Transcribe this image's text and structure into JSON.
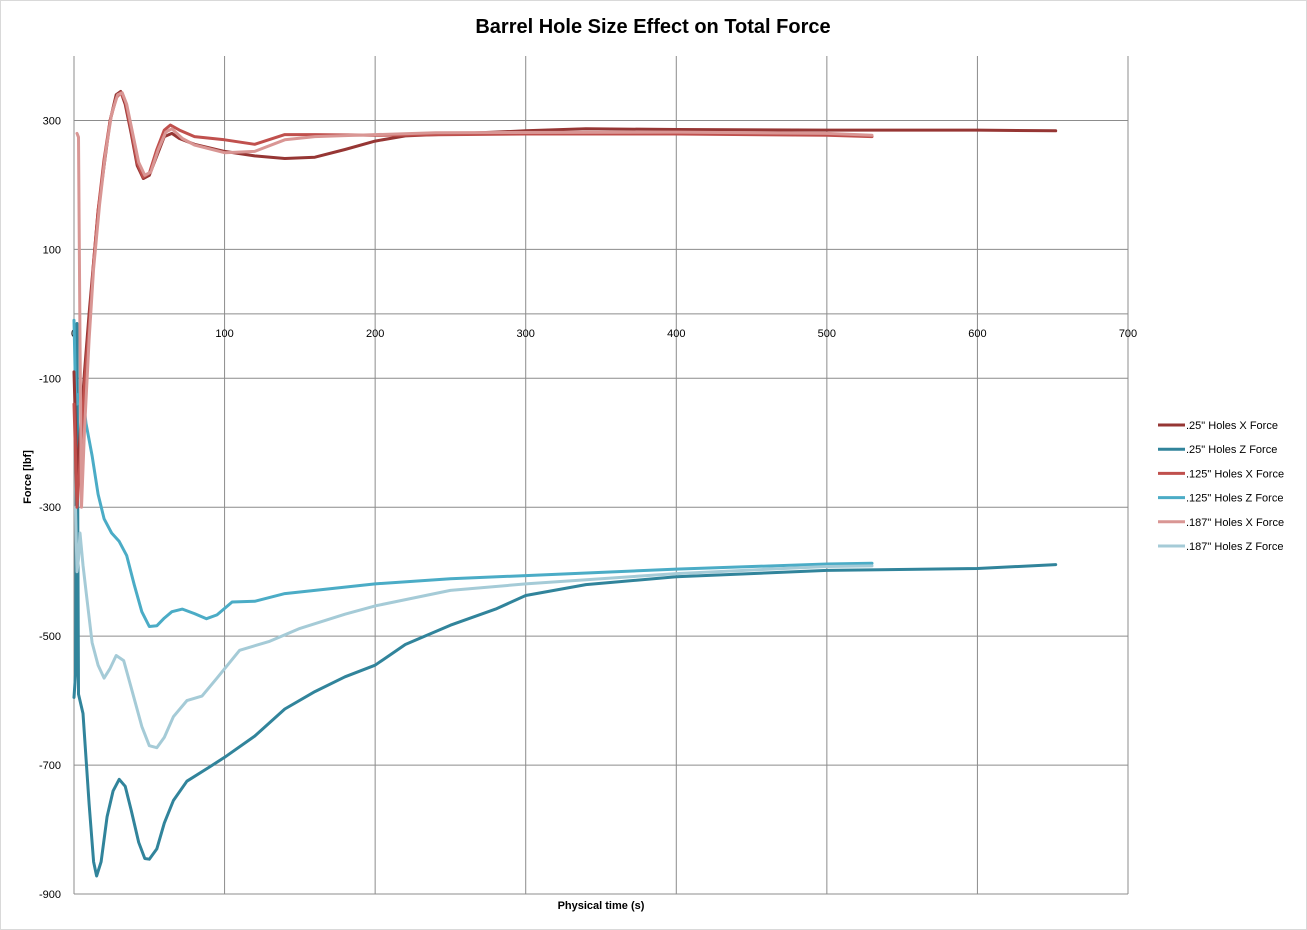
{
  "chart_data": {
    "type": "line",
    "title": "Barrel Hole Size Effect on Total Force",
    "xlabel": "Physical  time (s)",
    "ylabel": "Force  [lbf]",
    "xlim": [
      0,
      700
    ],
    "ylim": [
      -900,
      400
    ],
    "x_ticks": [
      0,
      100,
      200,
      300,
      400,
      500,
      600,
      700
    ],
    "y_ticks": [
      300,
      100,
      -100,
      -300,
      -500,
      -700,
      -900
    ],
    "grid": true,
    "legend_position": "right",
    "series": [
      {
        "name": ".25\" Holes X Force",
        "color": "#963634",
        "points": [
          [
            0,
            -90
          ],
          [
            2,
            -260
          ],
          [
            4,
            -190
          ],
          [
            7,
            -90
          ],
          [
            10,
            0
          ],
          [
            13,
            80
          ],
          [
            16,
            160
          ],
          [
            20,
            230
          ],
          [
            24,
            300
          ],
          [
            28,
            340
          ],
          [
            31,
            345
          ],
          [
            34,
            325
          ],
          [
            38,
            280
          ],
          [
            42,
            230
          ],
          [
            46,
            210
          ],
          [
            50,
            215
          ],
          [
            55,
            245
          ],
          [
            60,
            275
          ],
          [
            65,
            280
          ],
          [
            70,
            272
          ],
          [
            80,
            263
          ],
          [
            100,
            252
          ],
          [
            120,
            245
          ],
          [
            140,
            241
          ],
          [
            160,
            243
          ],
          [
            180,
            255
          ],
          [
            200,
            268
          ],
          [
            220,
            276
          ],
          [
            260,
            280
          ],
          [
            300,
            284
          ],
          [
            340,
            287
          ],
          [
            400,
            286
          ],
          [
            500,
            285
          ],
          [
            600,
            285
          ],
          [
            652,
            284
          ]
        ]
      },
      {
        "name": ".25\" Holes Z Force",
        "color": "#31849b",
        "points": [
          [
            0,
            -595
          ],
          [
            1,
            -560
          ],
          [
            2,
            -15
          ],
          [
            3,
            -590
          ],
          [
            6,
            -620
          ],
          [
            10,
            -760
          ],
          [
            13,
            -850
          ],
          [
            15,
            -872
          ],
          [
            18,
            -850
          ],
          [
            22,
            -780
          ],
          [
            26,
            -740
          ],
          [
            30,
            -722
          ],
          [
            34,
            -733
          ],
          [
            38,
            -770
          ],
          [
            43,
            -820
          ],
          [
            47,
            -845
          ],
          [
            50,
            -846
          ],
          [
            55,
            -830
          ],
          [
            60,
            -790
          ],
          [
            66,
            -755
          ],
          [
            75,
            -725
          ],
          [
            90,
            -703
          ],
          [
            100,
            -688
          ],
          [
            120,
            -655
          ],
          [
            140,
            -613
          ],
          [
            160,
            -586
          ],
          [
            180,
            -563
          ],
          [
            200,
            -545
          ],
          [
            220,
            -513
          ],
          [
            250,
            -483
          ],
          [
            280,
            -458
          ],
          [
            300,
            -437
          ],
          [
            340,
            -420
          ],
          [
            400,
            -408
          ],
          [
            500,
            -398
          ],
          [
            600,
            -395
          ],
          [
            652,
            -389
          ]
        ]
      },
      {
        "name": ".125\" Holes X Force",
        "color": "#c0504d",
        "points": [
          [
            0,
            -140
          ],
          [
            2,
            -300
          ],
          [
            4,
            -230
          ],
          [
            7,
            -110
          ],
          [
            10,
            -20
          ],
          [
            13,
            80
          ],
          [
            16,
            160
          ],
          [
            20,
            240
          ],
          [
            24,
            300
          ],
          [
            28,
            335
          ],
          [
            31,
            343
          ],
          [
            34,
            330
          ],
          [
            38,
            285
          ],
          [
            42,
            235
          ],
          [
            46,
            212
          ],
          [
            50,
            218
          ],
          [
            55,
            255
          ],
          [
            60,
            285
          ],
          [
            64,
            293
          ],
          [
            70,
            285
          ],
          [
            80,
            275
          ],
          [
            100,
            270
          ],
          [
            120,
            263
          ],
          [
            140,
            278
          ],
          [
            160,
            278
          ],
          [
            200,
            277
          ],
          [
            300,
            279
          ],
          [
            400,
            279
          ],
          [
            500,
            277
          ],
          [
            530,
            275
          ]
        ]
      },
      {
        "name": ".125\" Holes Z Force",
        "color": "#4bacc6",
        "points": [
          [
            0,
            -10
          ],
          [
            1,
            -120
          ],
          [
            2,
            -140
          ],
          [
            3,
            -125
          ],
          [
            6,
            -130
          ],
          [
            8,
            -170
          ],
          [
            12,
            -220
          ],
          [
            16,
            -280
          ],
          [
            20,
            -318
          ],
          [
            25,
            -340
          ],
          [
            30,
            -353
          ],
          [
            35,
            -375
          ],
          [
            40,
            -420
          ],
          [
            45,
            -462
          ],
          [
            50,
            -485
          ],
          [
            55,
            -484
          ],
          [
            60,
            -472
          ],
          [
            65,
            -462
          ],
          [
            72,
            -458
          ],
          [
            80,
            -465
          ],
          [
            88,
            -473
          ],
          [
            95,
            -467
          ],
          [
            105,
            -447
          ],
          [
            120,
            -446
          ],
          [
            140,
            -434
          ],
          [
            200,
            -419
          ],
          [
            250,
            -411
          ],
          [
            300,
            -406
          ],
          [
            400,
            -396
          ],
          [
            500,
            -388
          ],
          [
            530,
            -387
          ]
        ]
      },
      {
        "name": ".187\" Holes X Force",
        "color": "#d99694",
        "points": [
          [
            2,
            280
          ],
          [
            3,
            274
          ],
          [
            4,
            -40
          ],
          [
            5,
            -300
          ],
          [
            7,
            -180
          ],
          [
            10,
            -40
          ],
          [
            13,
            70
          ],
          [
            17,
            170
          ],
          [
            21,
            250
          ],
          [
            25,
            310
          ],
          [
            29,
            340
          ],
          [
            32,
            343
          ],
          [
            35,
            325
          ],
          [
            39,
            280
          ],
          [
            43,
            235
          ],
          [
            47,
            215
          ],
          [
            51,
            220
          ],
          [
            56,
            255
          ],
          [
            61,
            282
          ],
          [
            65,
            287
          ],
          [
            72,
            272
          ],
          [
            80,
            262
          ],
          [
            100,
            250
          ],
          [
            120,
            252
          ],
          [
            140,
            270
          ],
          [
            160,
            275
          ],
          [
            240,
            281
          ],
          [
            400,
            282
          ],
          [
            500,
            280
          ],
          [
            530,
            277
          ]
        ]
      },
      {
        "name": ".187\" Holes Z Force",
        "color": "#a5cbd7",
        "points": [
          [
            1,
            -300
          ],
          [
            2,
            -400
          ],
          [
            3,
            -380
          ],
          [
            4,
            -340
          ],
          [
            6,
            -390
          ],
          [
            8,
            -430
          ],
          [
            12,
            -510
          ],
          [
            16,
            -545
          ],
          [
            20,
            -565
          ],
          [
            24,
            -550
          ],
          [
            28,
            -530
          ],
          [
            33,
            -538
          ],
          [
            38,
            -580
          ],
          [
            45,
            -640
          ],
          [
            50,
            -670
          ],
          [
            55,
            -673
          ],
          [
            60,
            -657
          ],
          [
            66,
            -625
          ],
          [
            75,
            -600
          ],
          [
            85,
            -593
          ],
          [
            95,
            -565
          ],
          [
            110,
            -522
          ],
          [
            130,
            -508
          ],
          [
            150,
            -488
          ],
          [
            180,
            -466
          ],
          [
            200,
            -453
          ],
          [
            250,
            -429
          ],
          [
            300,
            -419
          ],
          [
            400,
            -403
          ],
          [
            500,
            -392
          ],
          [
            530,
            -391
          ]
        ]
      }
    ]
  }
}
